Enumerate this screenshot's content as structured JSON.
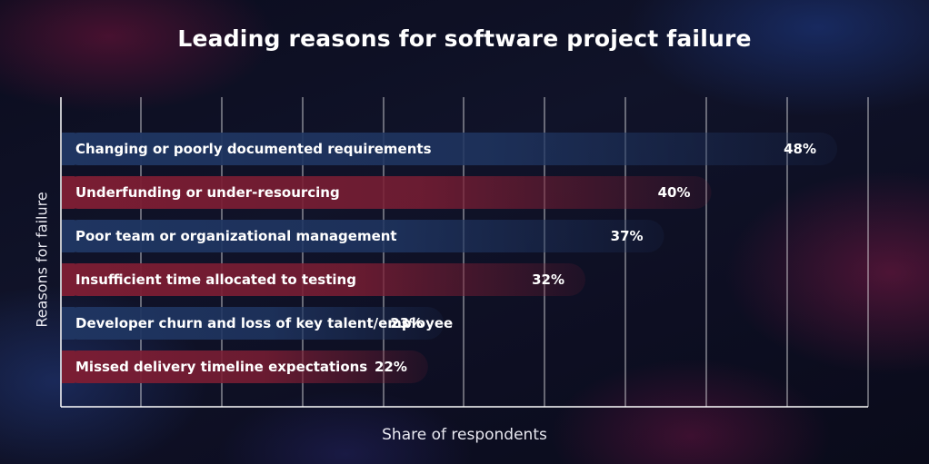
{
  "chart_data": {
    "type": "bar",
    "orientation": "horizontal",
    "title": "Leading reasons for software project failure",
    "xlabel": "Share of respondents",
    "ylabel": "Reasons for failure",
    "categories": [
      "Changing or poorly documented requirements",
      "Underfunding or under-resourcing",
      "Poor team or organizational management",
      "Insufficient time allocated to testing",
      "Developer churn and loss of key talent/employee",
      "Missed delivery timeline expectations"
    ],
    "values": [
      48,
      40,
      37,
      32,
      23,
      22
    ],
    "value_labels": [
      "48%",
      "40%",
      "37%",
      "32%",
      "23%",
      "22%"
    ],
    "xlim": [
      0,
      50
    ],
    "grid": true,
    "bar_colors": [
      "#1f3561",
      "#7a1d33",
      "#1f3561",
      "#7a1d33",
      "#1f3561",
      "#7a1d33"
    ]
  }
}
